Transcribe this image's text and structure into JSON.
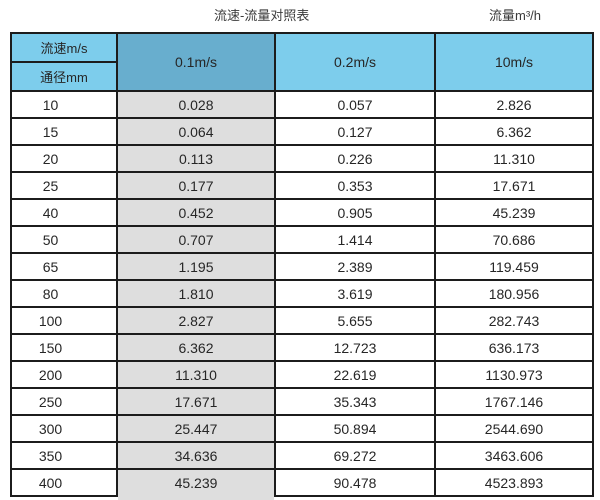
{
  "titles": {
    "main": "流速-流量对照表",
    "unit": "流量m³/h"
  },
  "table": {
    "corner_top": "流速m/s",
    "corner_bottom": "通径mm",
    "columns": [
      "0.1m/s",
      "0.2m/s",
      "10m/s"
    ],
    "rows": [
      {
        "diameter": "10",
        "values": [
          "0.028",
          "0.057",
          "2.826"
        ]
      },
      {
        "diameter": "15",
        "values": [
          "0.064",
          "0.127",
          "6.362"
        ]
      },
      {
        "diameter": "20",
        "values": [
          "0.113",
          "0.226",
          "11.310"
        ]
      },
      {
        "diameter": "25",
        "values": [
          "0.177",
          "0.353",
          "17.671"
        ]
      },
      {
        "diameter": "40",
        "values": [
          "0.452",
          "0.905",
          "45.239"
        ]
      },
      {
        "diameter": "50",
        "values": [
          "0.707",
          "1.414",
          "70.686"
        ]
      },
      {
        "diameter": "65",
        "values": [
          "1.195",
          "2.389",
          "119.459"
        ]
      },
      {
        "diameter": "80",
        "values": [
          "1.810",
          "3.619",
          "180.956"
        ]
      },
      {
        "diameter": "100",
        "values": [
          "2.827",
          "5.655",
          "282.743"
        ]
      },
      {
        "diameter": "150",
        "values": [
          "6.362",
          "12.723",
          "636.173"
        ]
      },
      {
        "diameter": "200",
        "values": [
          "11.310",
          "22.619",
          "1130.973"
        ]
      },
      {
        "diameter": "250",
        "values": [
          "17.671",
          "35.343",
          "1767.146"
        ]
      },
      {
        "diameter": "300",
        "values": [
          "25.447",
          "50.894",
          "2544.690"
        ]
      },
      {
        "diameter": "350",
        "values": [
          "34.636",
          "69.272",
          "3463.606"
        ]
      },
      {
        "diameter": "400",
        "values": [
          "45.239",
          "90.478",
          "4523.893"
        ]
      }
    ]
  },
  "colors": {
    "header_blue": "#7DCDEC",
    "highlight_header_blue": "#68AECE",
    "highlight_gray": "#DEDEDE",
    "border": "#1C1C1C",
    "text": "#262626"
  },
  "chart_data": {
    "type": "table",
    "title": "流速-流量对照表",
    "unit_label": "流量m³/h",
    "row_header_label": "通径mm",
    "column_header_label": "流速m/s",
    "columns": [
      "0.1m/s",
      "0.2m/s",
      "10m/s"
    ],
    "diameters_mm": [
      10,
      15,
      20,
      25,
      40,
      50,
      65,
      80,
      100,
      150,
      200,
      250,
      300,
      350,
      400
    ],
    "series": [
      {
        "name": "0.1m/s",
        "values": [
          0.028,
          0.064,
          0.113,
          0.177,
          0.452,
          0.707,
          1.195,
          1.81,
          2.827,
          6.362,
          11.31,
          17.671,
          25.447,
          34.636,
          45.239
        ]
      },
      {
        "name": "0.2m/s",
        "values": [
          0.057,
          0.127,
          0.226,
          0.353,
          0.905,
          1.414,
          2.389,
          3.619,
          5.655,
          12.723,
          22.619,
          35.343,
          50.894,
          69.272,
          90.478
        ]
      },
      {
        "name": "10m/s",
        "values": [
          2.826,
          6.362,
          11.31,
          17.671,
          45.239,
          70.686,
          119.459,
          180.956,
          282.743,
          636.173,
          1130.973,
          1767.146,
          2544.69,
          3463.606,
          4523.893
        ]
      }
    ],
    "highlighted_column": "0.1m/s"
  }
}
